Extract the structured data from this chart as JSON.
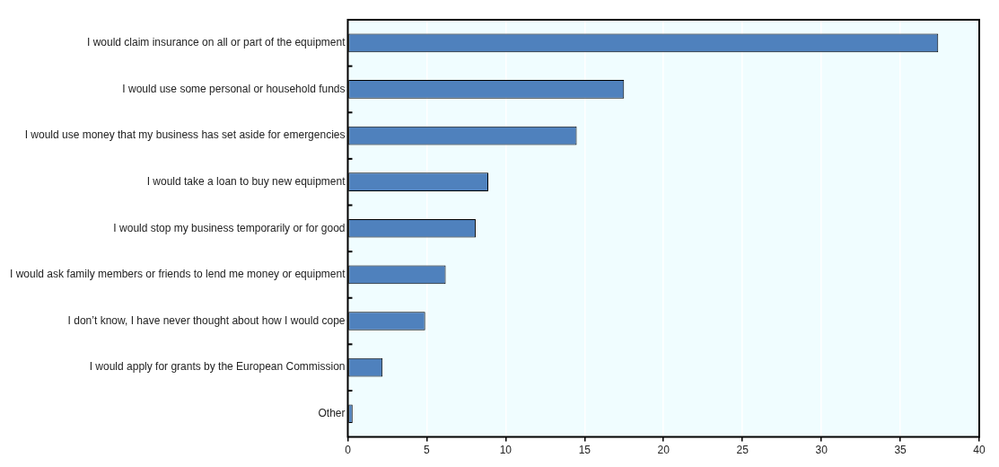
{
  "chart_data": {
    "type": "bar",
    "orientation": "horizontal",
    "categories": [
      "I would claim insurance on all or part of the equipment",
      "I would use some personal or household funds",
      "I would use money that my business has set aside for emergencies",
      "I would take a loan to buy new equipment",
      "I would stop my business temporarily or for good",
      "I would ask family members or friends to lend me money or equipment",
      "I don’t know, I have never thought about how I would cope",
      "I would apply for grants by the European Commission",
      "Other"
    ],
    "values": [
      37.4,
      17.5,
      14.5,
      8.9,
      8.1,
      6.2,
      4.9,
      2.2,
      0.3
    ],
    "color": "#4f81bd",
    "xlim": [
      0,
      40
    ],
    "xticks": [
      0,
      5,
      10,
      15,
      20,
      25,
      30,
      35,
      40
    ],
    "grid": "x",
    "legend": false
  }
}
